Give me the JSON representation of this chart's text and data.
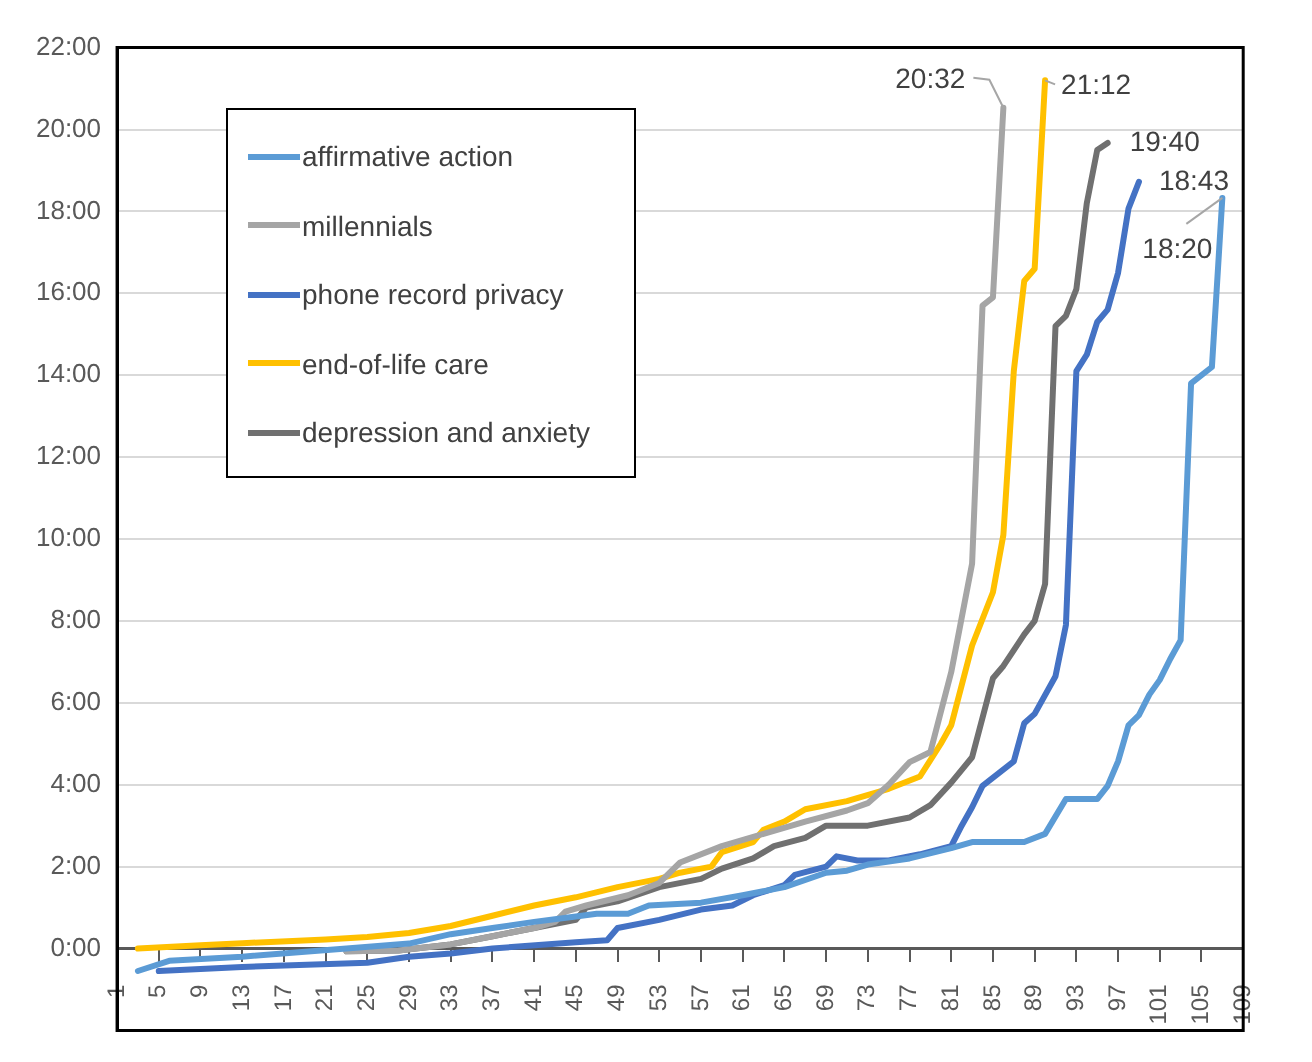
{
  "chart_data": {
    "type": "line",
    "series": [
      {
        "name": "affirmative action",
        "color": "#5b9bd5",
        "x": [
          3,
          6,
          13,
          23,
          29,
          33,
          37,
          41,
          45,
          47,
          50,
          52,
          57,
          61,
          65,
          69,
          71,
          73,
          77,
          81,
          83,
          88,
          90,
          92,
          95,
          96,
          97,
          98,
          99,
          100,
          101,
          102,
          103,
          104,
          106,
          107
        ],
        "values": [
          -0.55,
          -0.3,
          -0.2,
          0,
          0.12,
          0.35,
          0.5,
          0.65,
          0.78,
          0.85,
          0.85,
          1.05,
          1.12,
          1.3,
          1.5,
          1.85,
          1.9,
          2.05,
          2.2,
          2.45,
          2.6,
          2.6,
          2.8,
          3.65,
          3.65,
          3.97,
          4.57,
          5.45,
          5.7,
          6.2,
          6.56,
          7.07,
          7.53,
          13.8,
          14.2,
          18.33
        ]
      },
      {
        "name": "millennials",
        "color": "#a5a5a5",
        "x": [
          23,
          28,
          33,
          37,
          41,
          43,
          44,
          46,
          50,
          53,
          55,
          59,
          63,
          67,
          71,
          73,
          75,
          77,
          79,
          81,
          83,
          84,
          85,
          86
        ],
        "values": [
          -0.07,
          -0.05,
          0.1,
          0.3,
          0.5,
          0.65,
          0.9,
          1.05,
          1.3,
          1.6,
          2.1,
          2.5,
          2.8,
          3.1,
          3.37,
          3.55,
          4,
          4.55,
          4.8,
          6.75,
          9.4,
          15.7,
          15.9,
          20.53
        ]
      },
      {
        "name": "phone record privacy",
        "color": "#4472c4",
        "x": [
          5,
          13,
          25,
          29,
          33,
          37,
          45,
          48,
          49,
          53,
          57,
          60,
          62,
          65,
          66,
          69,
          70,
          72,
          75,
          78,
          81,
          82,
          83,
          84,
          87,
          88,
          89,
          91,
          92,
          93,
          94,
          95,
          96,
          97,
          98,
          99
        ],
        "values": [
          -0.55,
          -0.45,
          -0.35,
          -0.2,
          -0.12,
          0,
          0.15,
          0.2,
          0.5,
          0.7,
          0.95,
          1.05,
          1.3,
          1.55,
          1.8,
          2,
          2.25,
          2.15,
          2.15,
          2.3,
          2.5,
          3,
          3.45,
          3.97,
          4.57,
          5.5,
          5.73,
          6.65,
          7.9,
          14.1,
          14.5,
          15.3,
          15.6,
          16.5,
          18.07,
          18.72
        ]
      },
      {
        "name": "end-of-life care",
        "color": "#ffc000",
        "x": [
          3,
          9,
          13,
          21,
          25,
          29,
          33,
          37,
          41,
          45,
          49,
          53,
          55,
          57,
          58,
          59,
          62,
          63,
          65,
          67,
          71,
          75,
          78,
          80,
          81,
          83,
          85,
          86,
          87,
          88,
          89,
          90
        ],
        "values": [
          0,
          0.08,
          0.13,
          0.22,
          0.28,
          0.38,
          0.55,
          0.8,
          1.05,
          1.25,
          1.5,
          1.7,
          1.85,
          1.95,
          2,
          2.35,
          2.6,
          2.9,
          3.1,
          3.4,
          3.6,
          3.9,
          4.2,
          5,
          5.45,
          7.4,
          8.7,
          10.1,
          14.1,
          16.3,
          16.6,
          21.2
        ]
      },
      {
        "name": "depression and anxiety",
        "color": "#707070",
        "x": [
          23,
          28,
          33,
          37,
          41,
          45,
          46,
          49,
          53,
          57,
          59,
          62,
          64,
          67,
          69,
          73,
          77,
          79,
          81,
          83,
          85,
          86,
          88,
          89,
          90,
          91,
          92,
          93,
          94,
          95,
          96
        ],
        "values": [
          -0.07,
          -0.05,
          0.1,
          0.3,
          0.5,
          0.7,
          1,
          1.15,
          1.5,
          1.7,
          1.95,
          2.2,
          2.5,
          2.7,
          3,
          3,
          3.2,
          3.5,
          4.05,
          4.67,
          6.6,
          6.9,
          7.67,
          8,
          8.9,
          15.2,
          15.45,
          16.1,
          18.2,
          19.5,
          19.67
        ]
      }
    ],
    "xlim": [
      1,
      109
    ],
    "xticks": [
      1,
      5,
      9,
      13,
      17,
      21,
      25,
      29,
      33,
      37,
      41,
      45,
      49,
      53,
      57,
      61,
      65,
      69,
      73,
      77,
      81,
      85,
      89,
      93,
      97,
      101,
      105,
      109
    ],
    "ylim": [
      -2,
      22
    ],
    "yticks": [
      {
        "value": 0,
        "label": "0:00"
      },
      {
        "value": 2,
        "label": "2:00"
      },
      {
        "value": 4,
        "label": "4:00"
      },
      {
        "value": 6,
        "label": "6:00"
      },
      {
        "value": 8,
        "label": "8:00"
      },
      {
        "value": 10,
        "label": "10:00"
      },
      {
        "value": 12,
        "label": "12:00"
      },
      {
        "value": 14,
        "label": "14:00"
      },
      {
        "value": 16,
        "label": "16:00"
      },
      {
        "value": 18,
        "label": "18:00"
      },
      {
        "value": 20,
        "label": "20:00"
      },
      {
        "value": 22,
        "label": "22:00"
      }
    ],
    "annotations": [
      {
        "text": "20:32",
        "x": 86,
        "y": 20.53
      },
      {
        "text": "21:12",
        "x": 90,
        "y": 21.2
      },
      {
        "text": "19:40",
        "x": 96,
        "y": 19.67
      },
      {
        "text": "18:43",
        "x": 99,
        "y": 18.72
      },
      {
        "text": "18:20",
        "x": 107,
        "y": 18.33
      }
    ],
    "grid": "y",
    "legend": "top left",
    "marker": "none",
    "line_style": "solid"
  }
}
